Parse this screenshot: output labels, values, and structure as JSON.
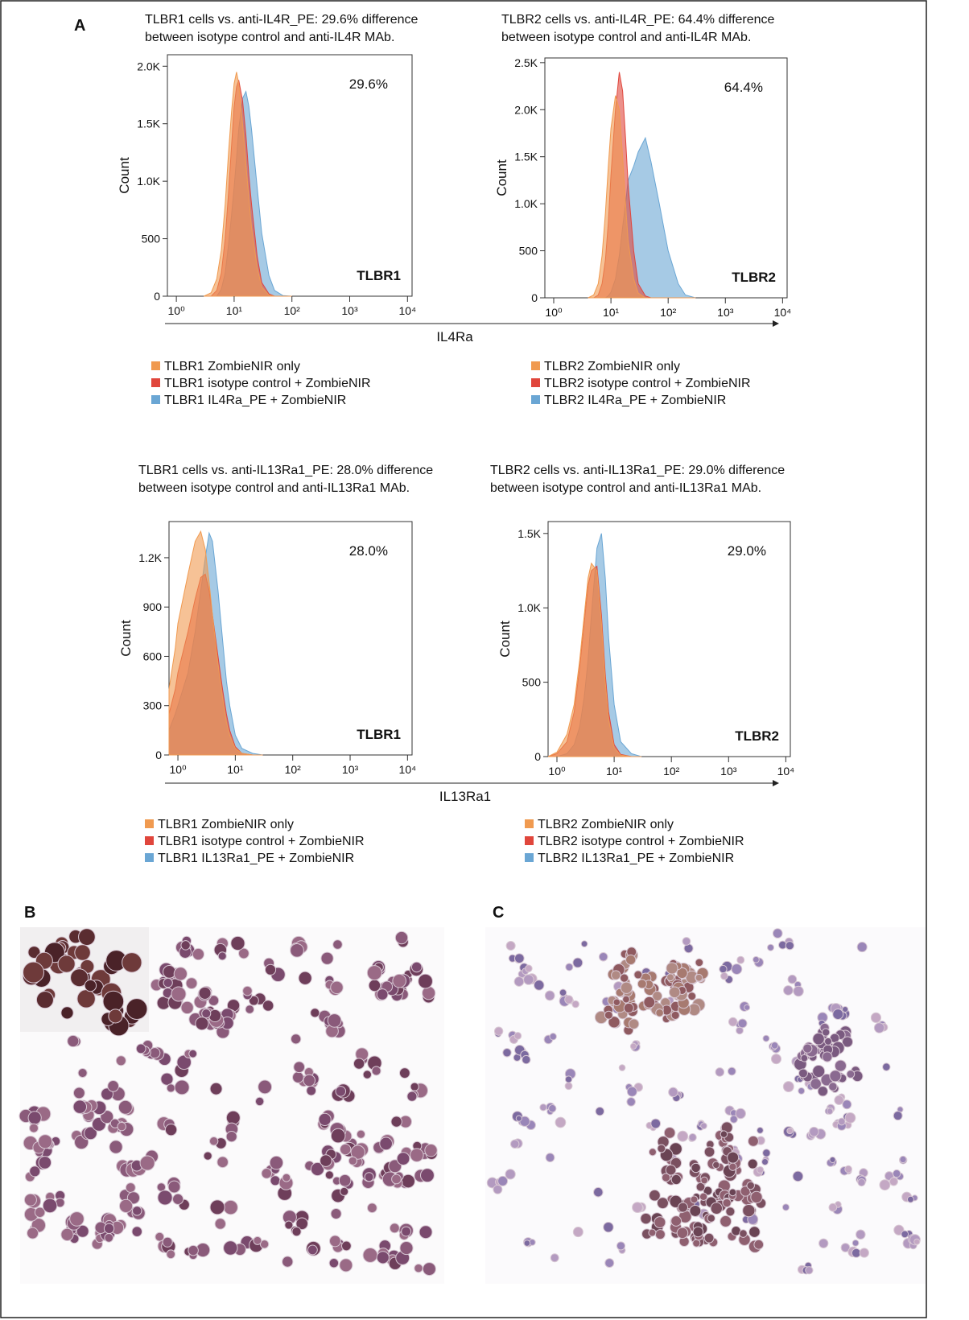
{
  "panel_labels": [
    "A",
    "B",
    "C"
  ],
  "x_axis_labels": [
    "IL4Ra",
    "IL13Ra1"
  ],
  "chart_data": [
    {
      "type": "area",
      "title": "TLBR1 cells vs. anti-IL4R_PE: 29.6% difference between isotype control and anti-IL4R MAb.",
      "annotation": "29.6%",
      "sample_label": "TLBR1",
      "ylabel": "Count",
      "xscale": "log",
      "x": [
        3,
        4,
        5,
        6,
        7,
        8,
        9,
        10,
        11,
        12,
        14,
        16,
        18,
        20,
        25,
        30,
        40,
        50,
        70,
        100
      ],
      "series": [
        {
          "name": "TLBR1 IL4Ra_PE + ZombieNIR",
          "color": "#6aa6d4",
          "values": [
            0,
            0,
            0,
            60,
            200,
            450,
            700,
            950,
            1200,
            1450,
            1720,
            1780,
            1650,
            1450,
            950,
            550,
            180,
            50,
            5,
            0
          ]
        },
        {
          "name": "TLBR1 isotype control + ZombieNIR",
          "color": "#e0463c",
          "values": [
            0,
            0,
            50,
            200,
            500,
            900,
            1300,
            1650,
            1820,
            1880,
            1700,
            1400,
            1050,
            800,
            350,
            120,
            20,
            0,
            0,
            0
          ]
        },
        {
          "name": "TLBR1 ZombieNIR only",
          "color": "#f09a50",
          "values": [
            0,
            30,
            150,
            400,
            800,
            1250,
            1600,
            1850,
            1950,
            1850,
            1500,
            1150,
            850,
            600,
            250,
            80,
            10,
            0,
            0,
            0
          ]
        }
      ],
      "xlim": [
        0.7,
        12000
      ],
      "ylim": [
        0,
        2100
      ],
      "xticks": [
        {
          "value": 1,
          "label": "10⁰"
        },
        {
          "value": 10,
          "label": "10¹"
        },
        {
          "value": 100,
          "label": "10²"
        },
        {
          "value": 1000,
          "label": "10³"
        },
        {
          "value": 10000,
          "label": "10⁴"
        }
      ],
      "yticks": [
        0,
        500,
        {
          "value": 1000,
          "label": "1.0K"
        },
        {
          "value": 1500,
          "label": "1.5K"
        },
        {
          "value": 2000,
          "label": "2.0K"
        }
      ]
    },
    {
      "type": "area",
      "title": "TLBR2 cells vs. anti-IL4R_PE: 64.4% difference between isotype control and anti-IL4R MAb.",
      "annotation": "64.4%",
      "sample_label": "TLBR2",
      "ylabel": "Count",
      "xscale": "log",
      "x": [
        4,
        5,
        6,
        7,
        8,
        9,
        10,
        12,
        14,
        16,
        18,
        20,
        25,
        30,
        40,
        50,
        70,
        100,
        150,
        200,
        300
      ],
      "series": [
        {
          "name": "TLBR2 IL4Ra_PE + ZombieNIR",
          "color": "#6aa6d4",
          "values": [
            0,
            0,
            0,
            0,
            0,
            20,
            60,
            200,
            450,
            750,
            1000,
            1250,
            1400,
            1550,
            1700,
            1450,
            1000,
            500,
            150,
            30,
            0
          ]
        },
        {
          "name": "TLBR2 isotype control + ZombieNIR",
          "color": "#e0463c",
          "values": [
            0,
            0,
            30,
            150,
            400,
            800,
            1300,
            2000,
            2400,
            2200,
            1700,
            1200,
            500,
            150,
            20,
            0,
            0,
            0,
            0,
            0,
            0
          ]
        },
        {
          "name": "TLBR2 ZombieNIR only",
          "color": "#f09a50",
          "values": [
            0,
            30,
            150,
            450,
            900,
            1400,
            1800,
            2150,
            2000,
            1500,
            1000,
            600,
            200,
            50,
            0,
            0,
            0,
            0,
            0,
            0,
            0
          ]
        }
      ],
      "xlim": [
        0.7,
        12000
      ],
      "ylim": [
        0,
        2550
      ],
      "xticks": [
        {
          "value": 1,
          "label": "10⁰"
        },
        {
          "value": 10,
          "label": "10¹"
        },
        {
          "value": 100,
          "label": "10²"
        },
        {
          "value": 1000,
          "label": "10³"
        },
        {
          "value": 10000,
          "label": "10⁴"
        }
      ],
      "yticks": [
        0,
        500,
        {
          "value": 1000,
          "label": "1.0K"
        },
        {
          "value": 1500,
          "label": "1.5K"
        },
        {
          "value": 2000,
          "label": "2.0K"
        },
        {
          "value": 2500,
          "label": "2.5K"
        }
      ]
    },
    {
      "type": "area",
      "title": "TLBR1 cells vs. anti-IL13Ra1_PE: 28.0% difference between isotype control and anti-IL13Ra1 MAb.",
      "annotation": "28.0%",
      "sample_label": "TLBR1",
      "ylabel": "Count",
      "xscale": "log",
      "x": [
        0.7,
        0.9,
        1,
        1.5,
        2,
        2.5,
        3,
        3.5,
        4,
        5,
        6,
        7,
        8,
        10,
        13,
        20,
        30
      ],
      "series": [
        {
          "name": "TLBR1 IL13Ra1_PE + ZombieNIR",
          "color": "#6aa6d4",
          "values": [
            150,
            250,
            300,
            500,
            750,
            1000,
            1200,
            1350,
            1300,
            1000,
            700,
            450,
            300,
            120,
            40,
            10,
            0
          ]
        },
        {
          "name": "TLBR1 isotype control + ZombieNIR",
          "color": "#e0463c",
          "values": [
            250,
            400,
            500,
            750,
            950,
            1080,
            1100,
            1000,
            850,
            600,
            400,
            250,
            150,
            50,
            10,
            0,
            0
          ]
        },
        {
          "name": "TLBR1 ZombieNIR only",
          "color": "#f09a50",
          "values": [
            400,
            650,
            800,
            1100,
            1300,
            1360,
            1250,
            1050,
            850,
            550,
            350,
            200,
            120,
            40,
            10,
            0,
            0
          ]
        }
      ],
      "xlim": [
        0.7,
        12000
      ],
      "ylim": [
        0,
        1420
      ],
      "xticks": [
        {
          "value": 1,
          "label": "10⁰"
        },
        {
          "value": 10,
          "label": "10¹"
        },
        {
          "value": 100,
          "label": "10²"
        },
        {
          "value": 1000,
          "label": "10³"
        },
        {
          "value": 10000,
          "label": "10⁴"
        }
      ],
      "yticks": [
        0,
        300,
        600,
        900,
        {
          "value": 1200,
          "label": "1.2K"
        }
      ]
    },
    {
      "type": "area",
      "title": "TLBR2 cells vs. anti-IL13Ra1_PE: 29.0% difference between isotype control and anti-IL13Ra1 MAb.",
      "annotation": "29.0%",
      "sample_label": "TLBR2",
      "ylabel": "Count",
      "xscale": "log",
      "x": [
        0.7,
        1,
        1.5,
        2,
        2.5,
        3,
        3.5,
        4,
        5,
        6,
        7,
        8,
        10,
        13,
        20,
        30
      ],
      "series": [
        {
          "name": "TLBR2 IL13Ra1_PE + ZombieNIR",
          "color": "#6aa6d4",
          "values": [
            0,
            0,
            20,
            80,
            200,
            400,
            650,
            950,
            1400,
            1500,
            1200,
            800,
            350,
            100,
            20,
            0
          ]
        },
        {
          "name": "TLBR2 isotype control + ZombieNIR",
          "color": "#e0463c",
          "values": [
            0,
            20,
            100,
            300,
            600,
            900,
            1150,
            1250,
            1280,
            950,
            550,
            300,
            80,
            15,
            0,
            0
          ]
        },
        {
          "name": "TLBR2 ZombieNIR only",
          "color": "#f09a50",
          "values": [
            0,
            30,
            150,
            350,
            650,
            950,
            1200,
            1300,
            1250,
            900,
            500,
            250,
            60,
            10,
            0,
            0
          ]
        }
      ],
      "xlim": [
        0.7,
        12000
      ],
      "ylim": [
        0,
        1580
      ],
      "xticks": [
        {
          "value": 1,
          "label": "10⁰"
        },
        {
          "value": 10,
          "label": "10¹"
        },
        {
          "value": 100,
          "label": "10²"
        },
        {
          "value": 1000,
          "label": "10³"
        },
        {
          "value": 10000,
          "label": "10⁴"
        }
      ],
      "yticks": [
        0,
        500,
        {
          "value": 1000,
          "label": "1.0K"
        },
        {
          "value": 1500,
          "label": "1.5K"
        }
      ]
    }
  ]
}
